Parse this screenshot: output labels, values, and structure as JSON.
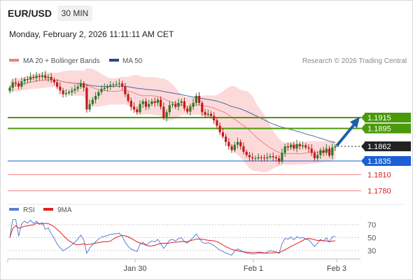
{
  "header": {
    "symbol": "EUR/USD",
    "timeframe": "30 MIN",
    "datetime": "Monday, February 2, 2026 11:11:11 AM CET"
  },
  "legend": {
    "ma20_label": "MA 20 + Bollinger Bands",
    "ma50_label": "MA 50",
    "copyright": "Research © 2026 Trading Central",
    "rsi_label": "RSI",
    "rsi_ma_label": "9MA"
  },
  "colors": {
    "up": "#2a7a2a",
    "down": "#c21b1b",
    "ma20": "#f08080",
    "ma50": "#1e4b8f",
    "band": "#fbd3d3",
    "resistance": "#4a9a0a",
    "support": "#1a5fd6",
    "support_minor": "#f08080",
    "last_price": "#222222",
    "rsi": "#5b7fd6",
    "rsi_ma": "#e02020"
  },
  "chart_data": [
    {
      "type": "candlestick",
      "ylim": [
        1.1762,
        1.1996
      ],
      "x_ticks": [
        "Jan 30",
        "Feb 1",
        "Feb 3"
      ],
      "levels": [
        {
          "label": "1.1915",
          "value": 1.1915,
          "kind": "resistance"
        },
        {
          "label": "1.1895",
          "value": 1.1895,
          "kind": "resistance"
        },
        {
          "label": "1.1862",
          "value": 1.1862,
          "kind": "last"
        },
        {
          "label": "1.1835",
          "value": 1.1835,
          "kind": "support"
        },
        {
          "label": "1.1810",
          "value": 1.181,
          "kind": "support_minor"
        },
        {
          "label": "1.1780",
          "value": 1.178,
          "kind": "support_minor"
        }
      ],
      "close": [
        1.197,
        1.198,
        1.1978,
        1.1972,
        1.1982,
        1.1986,
        1.1985,
        1.199,
        1.1988,
        1.1992,
        1.199,
        1.1993,
        1.1988,
        1.199,
        1.1985,
        1.198,
        1.1972,
        1.1965,
        1.1958,
        1.196,
        1.1962,
        1.1965,
        1.1968,
        1.1972,
        1.1978,
        1.197,
        1.193,
        1.194,
        1.1948,
        1.1955,
        1.1962,
        1.1968,
        1.197,
        1.1972,
        1.1975,
        1.1976,
        1.1977,
        1.1978,
        1.1972,
        1.1958,
        1.1946,
        1.1935,
        1.193,
        1.1925,
        1.194,
        1.1945,
        1.1935,
        1.194,
        1.1945,
        1.1942,
        1.1948,
        1.1935,
        1.1915,
        1.1925,
        1.1938,
        1.194,
        1.1935,
        1.1942,
        1.1945,
        1.1932,
        1.1926,
        1.1935,
        1.1942,
        1.1955,
        1.1942,
        1.1925,
        1.192,
        1.1922,
        1.1918,
        1.191,
        1.19,
        1.1888,
        1.188,
        1.187,
        1.1862,
        1.1855,
        1.1865,
        1.187,
        1.1862,
        1.1852,
        1.1846,
        1.1842,
        1.184,
        1.184,
        1.1842,
        1.1841,
        1.184,
        1.1842,
        1.1844,
        1.1842,
        1.184,
        1.1834,
        1.185,
        1.1862,
        1.186,
        1.1865,
        1.1858,
        1.1866,
        1.1862,
        1.1864,
        1.186,
        1.1858,
        1.185,
        1.184,
        1.1846,
        1.1855,
        1.185,
        1.1858,
        1.1845,
        1.186,
        1.1862
      ]
    },
    {
      "type": "line",
      "title": "RSI",
      "ylim": [
        30,
        70
      ],
      "y_ticks": [
        70,
        50,
        30
      ]
    }
  ]
}
